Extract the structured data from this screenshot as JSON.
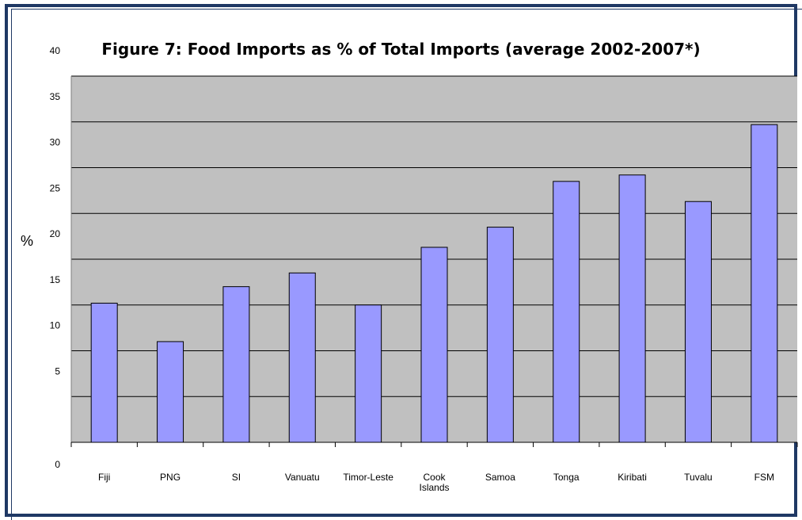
{
  "chart_data": {
    "type": "bar",
    "title": "Figure 7: Food Imports as % of Total Imports (average 2002-2007*)",
    "ylabel": "%",
    "xlabel": "",
    "categories": [
      [
        "Fiji"
      ],
      [
        "PNG"
      ],
      [
        "SI"
      ],
      [
        "Vanuatu"
      ],
      [
        "Timor-Leste"
      ],
      [
        "Cook",
        "Islands"
      ],
      [
        "Samoa"
      ],
      [
        "Tonga"
      ],
      [
        "Kiribati"
      ],
      [
        "Tuvalu"
      ],
      [
        "FSM"
      ]
    ],
    "values": [
      15.2,
      11.0,
      17.0,
      18.5,
      15.0,
      21.3,
      23.5,
      28.5,
      29.2,
      26.3,
      34.7
    ],
    "ylim": [
      0,
      40
    ],
    "yticks": [
      0,
      5,
      10,
      15,
      20,
      25,
      30,
      35,
      40
    ],
    "grid": true,
    "legend": "none",
    "colors": {
      "bar_fill": "#9999ff",
      "bar_stroke": "#000000",
      "plot_background": "#c0c0c0",
      "frame": "#1f3864"
    }
  }
}
